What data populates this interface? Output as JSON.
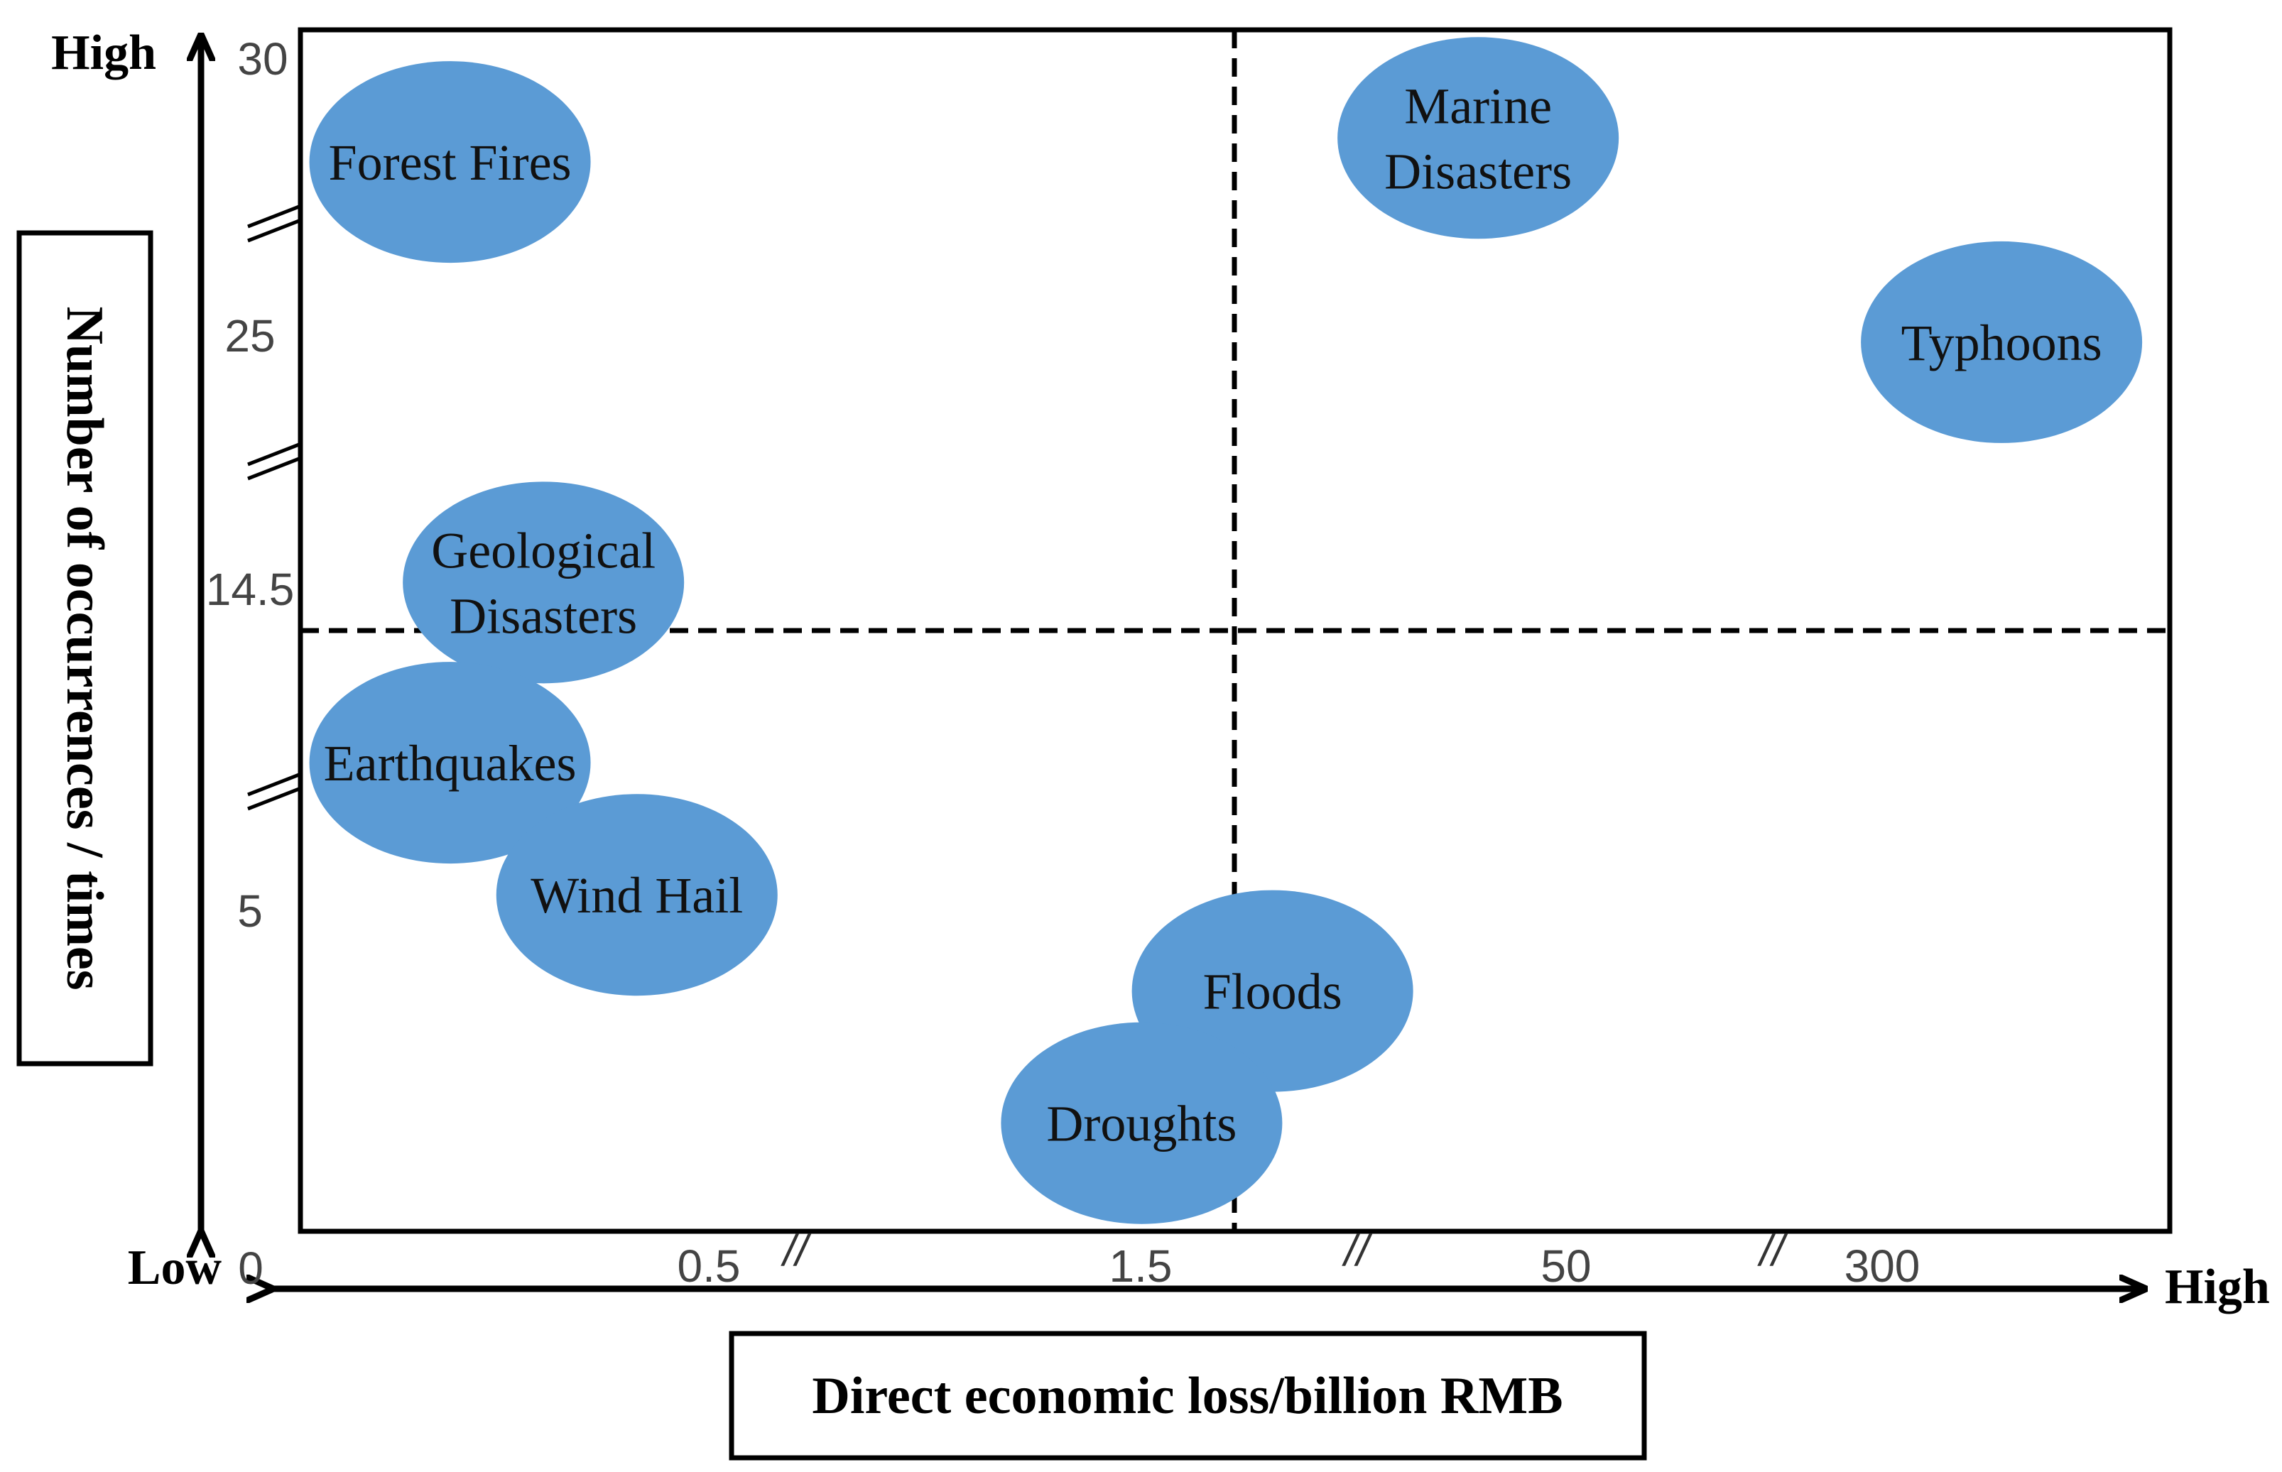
{
  "chart_data": {
    "type": "scatter",
    "title": "",
    "xlabel": "Direct economic loss/billion RMB",
    "ylabel": "Number of occurrences / times",
    "x_axis": {
      "low_label": "Low",
      "high_label": "High",
      "ticks": [
        "0",
        "0.5",
        "1.5",
        "50",
        "300"
      ],
      "break_marks": "//"
    },
    "y_axis": {
      "low_label": "Low",
      "high_label": "High",
      "ticks": [
        "30",
        "25",
        "14.5",
        "5"
      ],
      "break_marks": "//"
    },
    "thresholds": {
      "x": "1.5",
      "y": "14.5"
    },
    "bubble_color": "#5b9bd5",
    "points": [
      {
        "label": "Forest Fires",
        "x_pos": 0.08,
        "y_pos": 0.89
      },
      {
        "label": "Marine\nDisasters",
        "x_pos": 0.63,
        "y_pos": 0.91
      },
      {
        "label": "Typhoons",
        "x_pos": 0.91,
        "y_pos": 0.74
      },
      {
        "label": "Geological\nDisasters",
        "x_pos": 0.13,
        "y_pos": 0.54
      },
      {
        "label": "Earthquakes",
        "x_pos": 0.08,
        "y_pos": 0.39
      },
      {
        "label": "Wind Hail",
        "x_pos": 0.18,
        "y_pos": 0.28
      },
      {
        "label": "Floods",
        "x_pos": 0.52,
        "y_pos": 0.2
      },
      {
        "label": "Droughts",
        "x_pos": 0.45,
        "y_pos": 0.09
      }
    ]
  }
}
